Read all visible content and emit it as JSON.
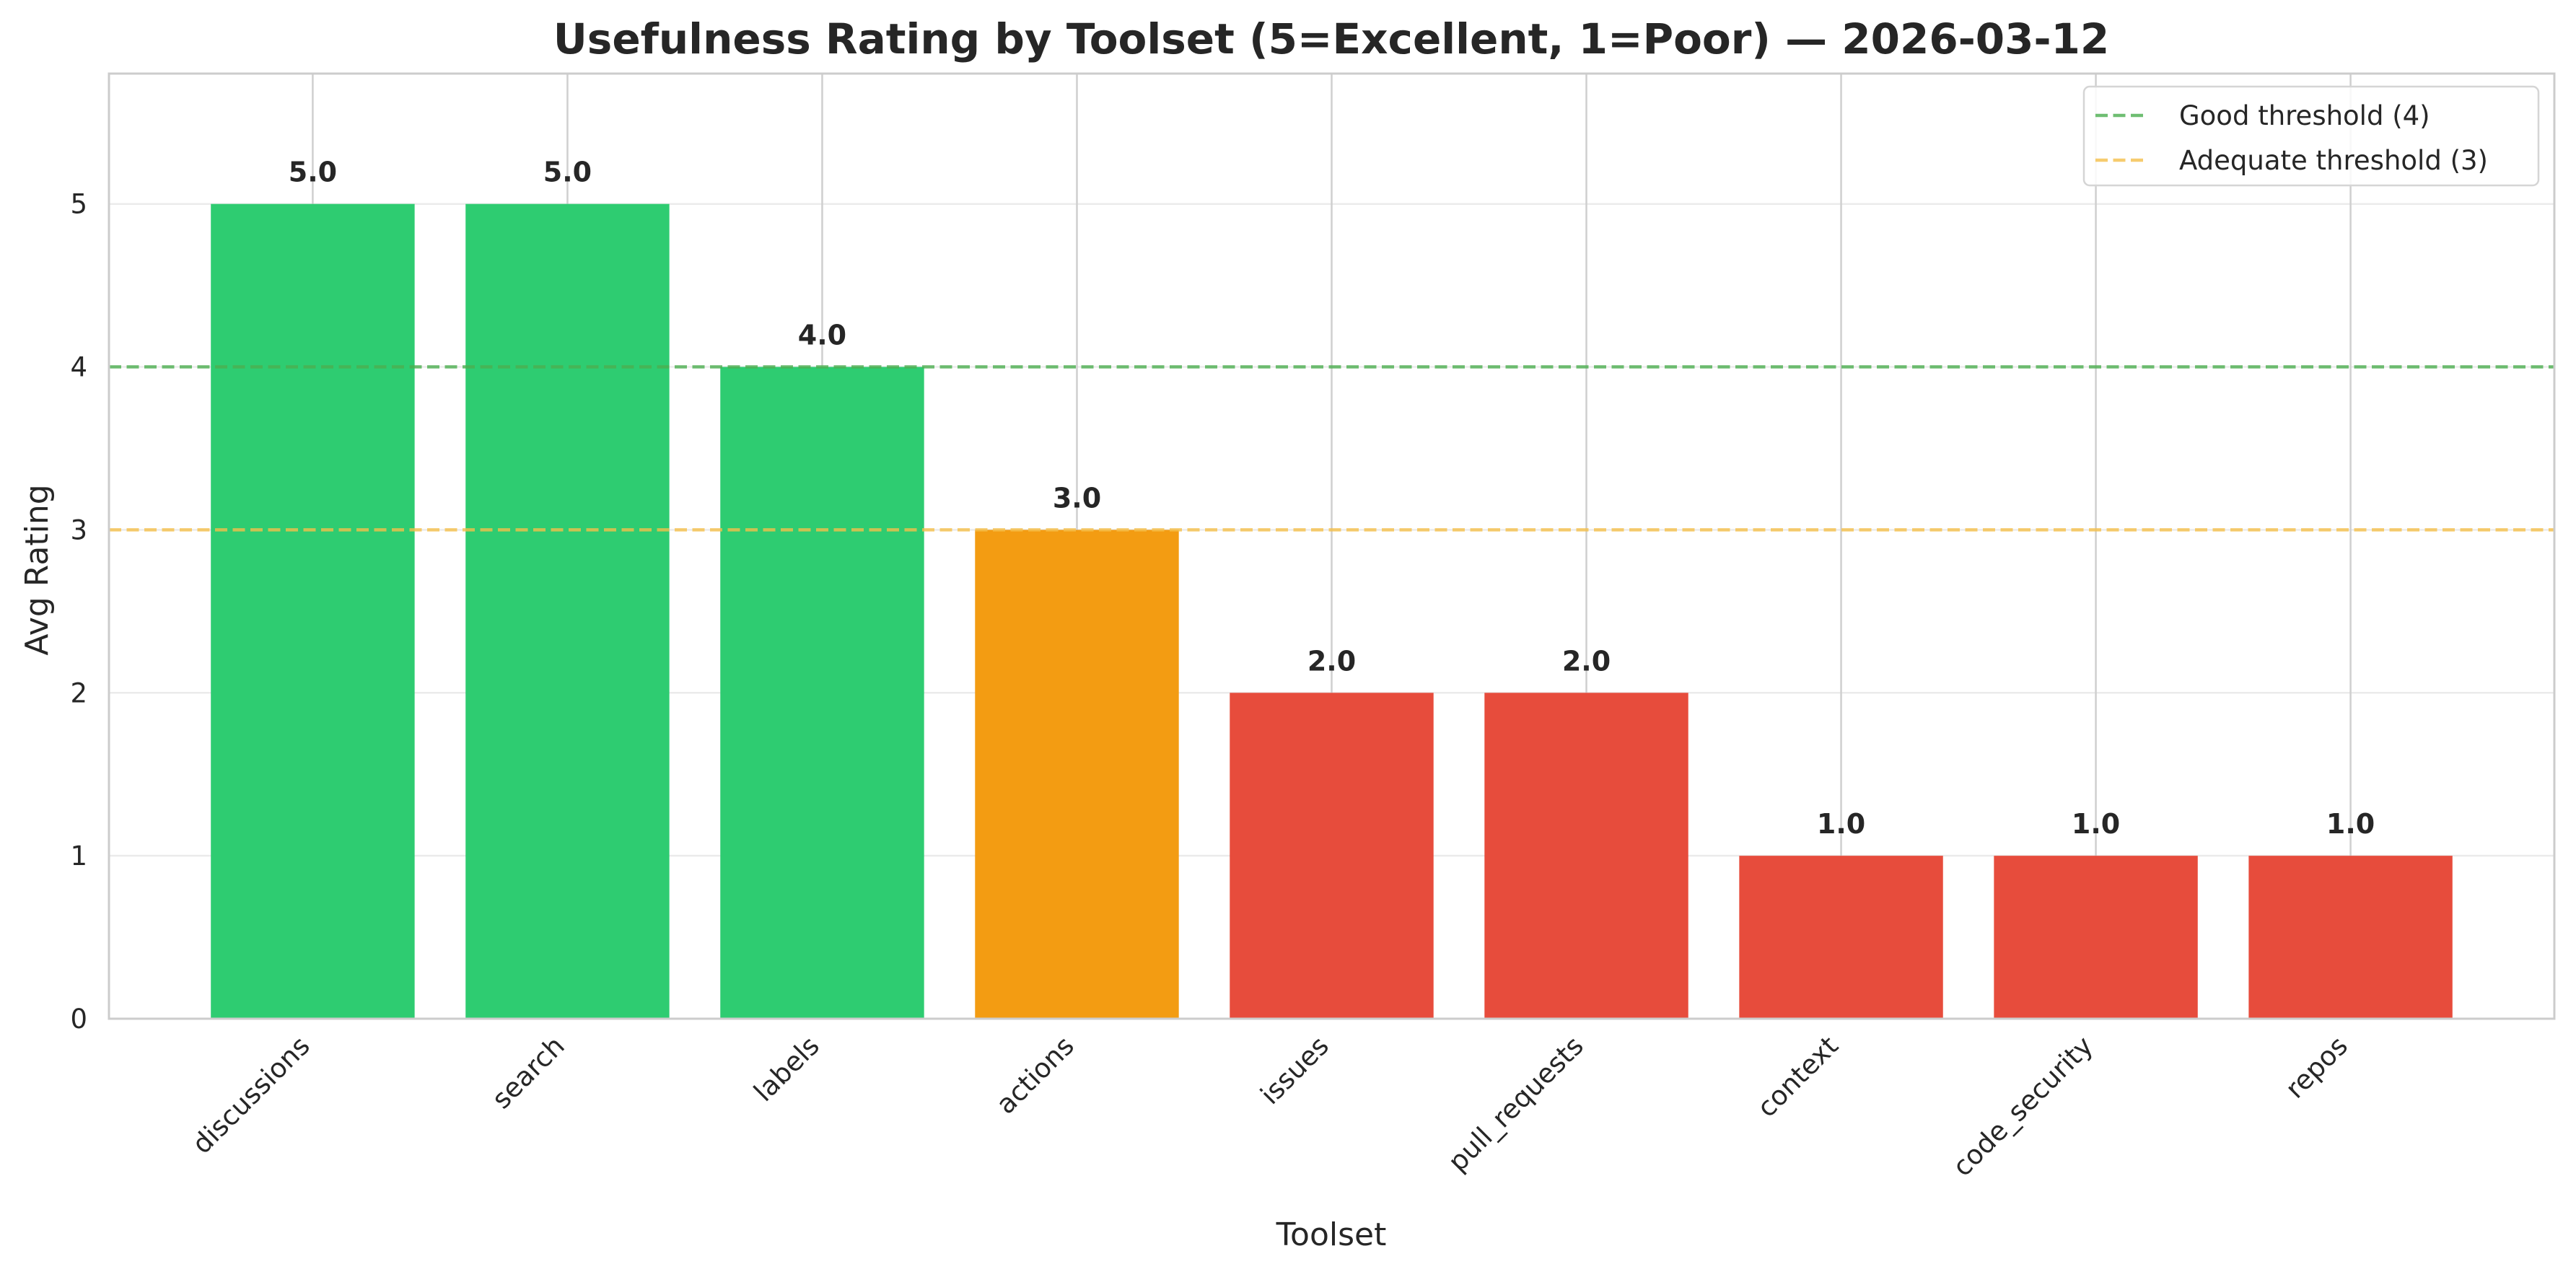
{
  "chart_data": {
    "type": "bar",
    "title": "Usefulness Rating by Toolset (5=Excellent, 1=Poor) — 2026-03-12",
    "xlabel": "Toolset",
    "ylabel": "Avg Rating",
    "categories": [
      "discussions",
      "search",
      "labels",
      "actions",
      "issues",
      "pull_requests",
      "context",
      "code_security",
      "repos"
    ],
    "values": [
      5.0,
      5.0,
      4.0,
      3.0,
      2.0,
      2.0,
      1.0,
      1.0,
      1.0
    ],
    "value_labels": [
      "5.0",
      "5.0",
      "4.0",
      "3.0",
      "2.0",
      "2.0",
      "1.0",
      "1.0",
      "1.0"
    ],
    "bar_colors": [
      "#2ecc71",
      "#2ecc71",
      "#2ecc71",
      "#f39c12",
      "#e74c3c",
      "#e74c3c",
      "#e74c3c",
      "#e74c3c",
      "#e74c3c"
    ],
    "ylim": [
      0,
      5.8
    ],
    "yticks": [
      0,
      1,
      2,
      3,
      4,
      5
    ],
    "grid": true,
    "legend_position": "top-right",
    "reference_lines": [
      {
        "name": "Good threshold (4)",
        "value": 4,
        "color": "#4caf50",
        "style": "dashed"
      },
      {
        "name": "Adequate threshold (3)",
        "value": 3,
        "color": "#f5c04a",
        "style": "dashed"
      }
    ]
  }
}
